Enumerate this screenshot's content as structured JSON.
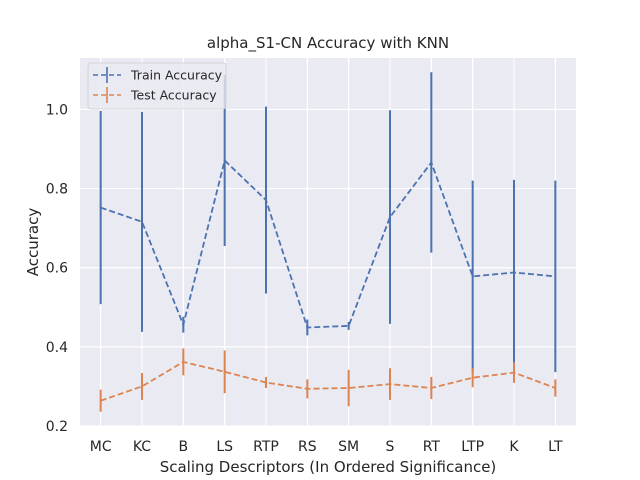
{
  "chart_data": {
    "type": "line",
    "title": "alpha_S1-CN Accuracy with KNN",
    "xlabel": "Scaling Descriptors (In Ordered Significance)",
    "ylabel": "Accuracy",
    "categories": [
      "MC",
      "KC",
      "B",
      "LS",
      "RTP",
      "RS",
      "SM",
      "S",
      "RT",
      "LTP",
      "K",
      "LT"
    ],
    "ylim": [
      0.2,
      1.13
    ],
    "yticks": [
      0.2,
      0.4,
      0.6,
      0.8,
      1.0
    ],
    "ytick_labels": [
      "0.2",
      "0.4",
      "0.6",
      "0.8",
      "1.0"
    ],
    "grid": true,
    "legend_position": "top-left",
    "series": [
      {
        "name": "Train Accuracy",
        "color": "#4c72b0",
        "linestyle": "dashed",
        "values": [
          0.752,
          0.716,
          0.456,
          0.871,
          0.771,
          0.449,
          0.453,
          0.728,
          0.866,
          0.578,
          0.588,
          0.578
        ],
        "errors": [
          0.244,
          0.278,
          0.02,
          0.216,
          0.236,
          0.02,
          0.01,
          0.27,
          0.228,
          0.242,
          0.234,
          0.242
        ]
      },
      {
        "name": "Test Accuracy",
        "color": "#dd8452",
        "linestyle": "dashed",
        "values": [
          0.264,
          0.3,
          0.362,
          0.337,
          0.31,
          0.294,
          0.296,
          0.306,
          0.296,
          0.322,
          0.335,
          0.296
        ],
        "errors": [
          0.028,
          0.034,
          0.034,
          0.054,
          0.014,
          0.024,
          0.046,
          0.04,
          0.028,
          0.024,
          0.026,
          0.022
        ]
      }
    ]
  }
}
